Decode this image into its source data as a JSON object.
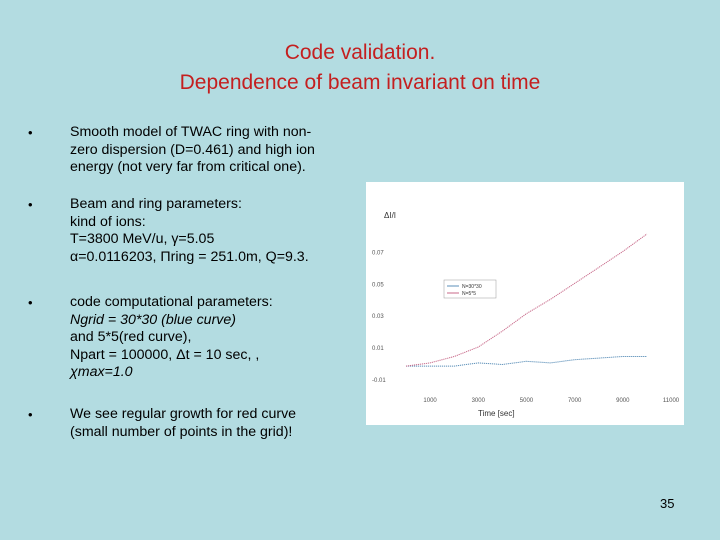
{
  "title": {
    "line1": "Code validation.",
    "line2": "Dependence of beam invariant on time"
  },
  "bullets": [
    {
      "symbol": "•",
      "lines": [
        "Smooth model of TWAC ring with non-",
        "zero dispersion (D=0.461) and high ion",
        "energy (not very far from critical one)."
      ]
    },
    {
      "symbol": "•",
      "lines": [
        "Beam and ring parameters:",
        "kind of ions:",
        "T=3800 MeV/u, γ=5.05",
        "α=0.0116203, Πring = 251.0m, Q=9.3."
      ]
    },
    {
      "symbol": "•",
      "lines": [
        "code computational parameters:",
        "Ngrid = 30*30 (blue curve)",
        "and 5*5(red curve),",
        "Npart = 100000, Δt = 10 sec, ,",
        "χmax=1.0"
      ]
    },
    {
      "symbol": "•",
      "lines": [
        "We see regular growth for red curve",
        "(small number of points in the grid)!"
      ]
    }
  ],
  "page_number": "35",
  "chart_data": {
    "type": "line",
    "ylabel": "ΔI/I",
    "xlabel": "Time [sec]",
    "xlim": [
      0,
      11000
    ],
    "ylim": [
      -0.012,
      0.098
    ],
    "x_ticks": [
      "1000",
      "3000",
      "5000",
      "7000",
      "9000",
      "11000"
    ],
    "y_ticks": [
      "-0.01",
      "0.01",
      "0.03",
      "0.05",
      "0.07"
    ],
    "legend_position": "upper-middle",
    "series": [
      {
        "name": "N=30*30",
        "color": "#5b8fb8",
        "x": [
          0,
          1000,
          2000,
          3000,
          4000,
          5000,
          6000,
          7000,
          8000,
          9000,
          10000
        ],
        "y": [
          -0.002,
          -0.002,
          -0.002,
          0.0,
          -0.001,
          0.001,
          0.0,
          0.002,
          0.003,
          0.004,
          0.004
        ]
      },
      {
        "name": "N=5*5",
        "color": "#c86a8a",
        "x": [
          0,
          1000,
          2000,
          3000,
          4000,
          5000,
          6000,
          7000,
          8000,
          9000,
          10000
        ],
        "y": [
          -0.002,
          0.0,
          0.004,
          0.01,
          0.02,
          0.031,
          0.04,
          0.05,
          0.06,
          0.07,
          0.081
        ]
      }
    ]
  }
}
